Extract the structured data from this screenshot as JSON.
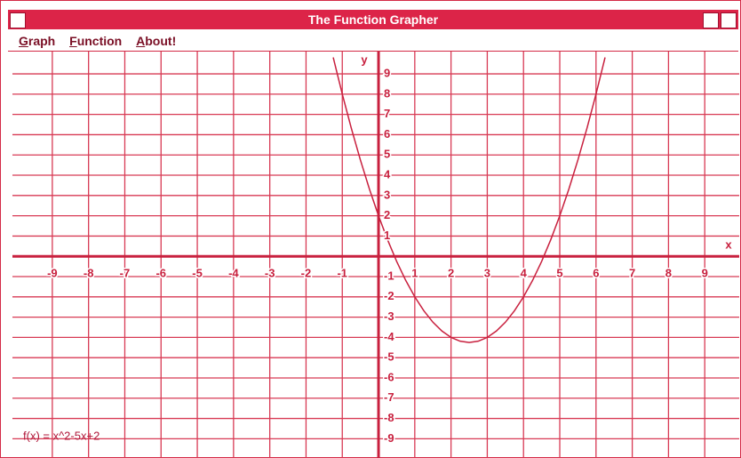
{
  "window": {
    "title": "The Function Grapher",
    "menu": [
      "Graph",
      "Function",
      "About!"
    ]
  },
  "chart_data": {
    "type": "line",
    "function_label": "f(x) = x^2-5x+2",
    "x_label": "x",
    "y_label": "y",
    "x": [
      -1.25,
      -1,
      -0.75,
      -0.5,
      -0.25,
      0,
      0.25,
      0.5,
      0.75,
      1,
      1.25,
      1.5,
      1.75,
      2,
      2.25,
      2.5,
      2.75,
      3,
      3.25,
      3.5,
      3.75,
      4,
      4.25,
      4.5,
      4.75,
      5,
      5.25,
      5.5,
      5.75,
      6,
      6.25
    ],
    "values": [
      9.8125,
      8,
      6.3125,
      4.75,
      3.3125,
      2,
      0.8125,
      -0.25,
      -1.1875,
      -2,
      -2.6875,
      -3.25,
      -3.6875,
      -4,
      -4.1875,
      -4.25,
      -4.1875,
      -4,
      -3.6875,
      -3.25,
      -2.6875,
      -2,
      -1.1875,
      -0.25,
      0.8125,
      2,
      3.3125,
      4.75,
      6.3125,
      8,
      9.8125
    ],
    "color": "#c8203e",
    "xlim": [
      -10.1,
      10
    ],
    "ylim": [
      -9.95,
      10.1
    ],
    "xticks": [
      -9,
      -8,
      -7,
      -6,
      -5,
      -4,
      -3,
      -2,
      -1,
      1,
      2,
      3,
      4,
      5,
      6,
      7,
      8,
      9
    ],
    "yticks": [
      -9,
      -8,
      -7,
      -6,
      -5,
      -4,
      -3,
      -2,
      -1,
      1,
      2,
      3,
      4,
      5,
      6,
      7,
      8,
      9
    ],
    "grid": true
  }
}
